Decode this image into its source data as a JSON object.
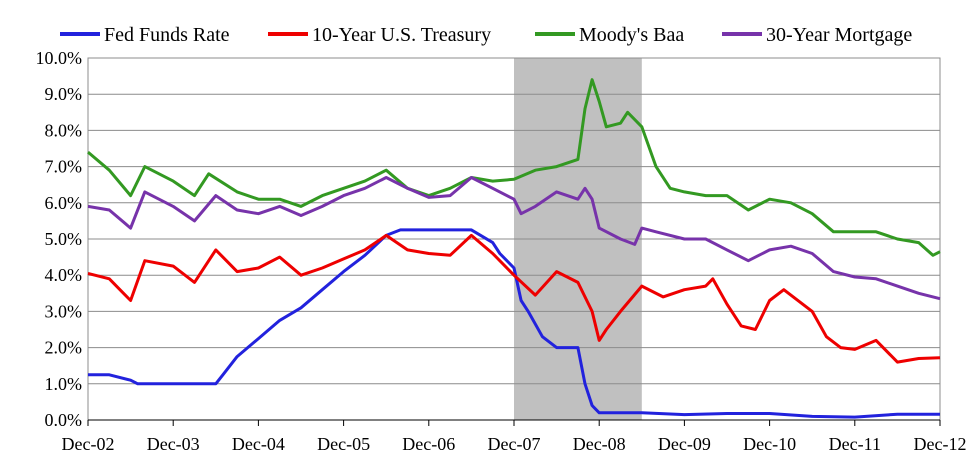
{
  "chart_data": {
    "type": "line",
    "title": "",
    "xlabel": "",
    "ylabel": "",
    "x_ticks": [
      "Dec-02",
      "Dec-03",
      "Dec-04",
      "Dec-05",
      "Dec-06",
      "Dec-07",
      "Dec-08",
      "Dec-09",
      "Dec-10",
      "Dec-11",
      "Dec-12"
    ],
    "y_ticks": [
      "0.0%",
      "1.0%",
      "2.0%",
      "3.0%",
      "4.0%",
      "5.0%",
      "6.0%",
      "7.0%",
      "8.0%",
      "9.0%",
      "10.0%"
    ],
    "xlim": [
      "2002-12",
      "2012-12"
    ],
    "ylim": [
      0,
      10
    ],
    "y_unit": "%",
    "grid": "horizontal",
    "legend_position": "top",
    "recession_shading": {
      "start": "2007-12",
      "end": "2009-06",
      "color": "#c0c0c0"
    },
    "series": [
      {
        "name": "Fed Funds Rate",
        "color": "#2222dd",
        "points": [
          [
            "2002-12",
            1.25
          ],
          [
            "2003-03",
            1.25
          ],
          [
            "2003-06",
            1.1
          ],
          [
            "2003-07",
            1.0
          ],
          [
            "2003-12",
            1.0
          ],
          [
            "2004-06",
            1.0
          ],
          [
            "2004-07",
            1.25
          ],
          [
            "2004-09",
            1.75
          ],
          [
            "2004-12",
            2.25
          ],
          [
            "2005-03",
            2.75
          ],
          [
            "2005-06",
            3.1
          ],
          [
            "2005-09",
            3.6
          ],
          [
            "2005-12",
            4.1
          ],
          [
            "2006-03",
            4.55
          ],
          [
            "2006-06",
            5.1
          ],
          [
            "2006-08",
            5.25
          ],
          [
            "2006-12",
            5.25
          ],
          [
            "2007-06",
            5.25
          ],
          [
            "2007-09",
            4.9
          ],
          [
            "2007-10",
            4.6
          ],
          [
            "2007-12",
            4.2
          ],
          [
            "2008-01",
            3.3
          ],
          [
            "2008-02",
            3.0
          ],
          [
            "2008-04",
            2.3
          ],
          [
            "2008-06",
            2.0
          ],
          [
            "2008-09",
            2.0
          ],
          [
            "2008-10",
            1.0
          ],
          [
            "2008-11",
            0.4
          ],
          [
            "2008-12",
            0.2
          ],
          [
            "2009-06",
            0.2
          ],
          [
            "2009-12",
            0.15
          ],
          [
            "2010-06",
            0.18
          ],
          [
            "2010-12",
            0.18
          ],
          [
            "2011-06",
            0.1
          ],
          [
            "2011-12",
            0.08
          ],
          [
            "2012-06",
            0.16
          ],
          [
            "2012-12",
            0.16
          ]
        ]
      },
      {
        "name": "10-Year U.S. Treasury",
        "color": "#ee0000",
        "points": [
          [
            "2002-12",
            4.05
          ],
          [
            "2003-03",
            3.9
          ],
          [
            "2003-05",
            3.5
          ],
          [
            "2003-06",
            3.3
          ],
          [
            "2003-08",
            4.4
          ],
          [
            "2003-12",
            4.25
          ],
          [
            "2004-03",
            3.8
          ],
          [
            "2004-06",
            4.7
          ],
          [
            "2004-09",
            4.1
          ],
          [
            "2004-12",
            4.2
          ],
          [
            "2005-03",
            4.5
          ],
          [
            "2005-06",
            4.0
          ],
          [
            "2005-09",
            4.2
          ],
          [
            "2005-12",
            4.45
          ],
          [
            "2006-03",
            4.7
          ],
          [
            "2006-06",
            5.1
          ],
          [
            "2006-09",
            4.7
          ],
          [
            "2006-12",
            4.6
          ],
          [
            "2007-03",
            4.55
          ],
          [
            "2007-06",
            5.1
          ],
          [
            "2007-09",
            4.6
          ],
          [
            "2007-12",
            4.0
          ],
          [
            "2008-03",
            3.45
          ],
          [
            "2008-06",
            4.1
          ],
          [
            "2008-09",
            3.8
          ],
          [
            "2008-11",
            3.0
          ],
          [
            "2008-12",
            2.2
          ],
          [
            "2009-01",
            2.5
          ],
          [
            "2009-03",
            3.0
          ],
          [
            "2009-06",
            3.7
          ],
          [
            "2009-09",
            3.4
          ],
          [
            "2009-12",
            3.6
          ],
          [
            "2010-03",
            3.7
          ],
          [
            "2010-04",
            3.9
          ],
          [
            "2010-06",
            3.2
          ],
          [
            "2010-08",
            2.6
          ],
          [
            "2010-10",
            2.5
          ],
          [
            "2010-12",
            3.3
          ],
          [
            "2011-02",
            3.6
          ],
          [
            "2011-06",
            3.0
          ],
          [
            "2011-08",
            2.3
          ],
          [
            "2011-10",
            2.0
          ],
          [
            "2011-12",
            1.95
          ],
          [
            "2012-03",
            2.2
          ],
          [
            "2012-06",
            1.6
          ],
          [
            "2012-09",
            1.7
          ],
          [
            "2012-12",
            1.72
          ]
        ]
      },
      {
        "name": "Moody's Baa",
        "color": "#339922",
        "points": [
          [
            "2002-12",
            7.4
          ],
          [
            "2003-03",
            6.9
          ],
          [
            "2003-06",
            6.2
          ],
          [
            "2003-08",
            7.0
          ],
          [
            "2003-12",
            6.6
          ],
          [
            "2004-03",
            6.2
          ],
          [
            "2004-05",
            6.8
          ],
          [
            "2004-09",
            6.3
          ],
          [
            "2004-12",
            6.1
          ],
          [
            "2005-03",
            6.1
          ],
          [
            "2005-06",
            5.9
          ],
          [
            "2005-09",
            6.2
          ],
          [
            "2005-12",
            6.4
          ],
          [
            "2006-03",
            6.6
          ],
          [
            "2006-06",
            6.9
          ],
          [
            "2006-09",
            6.4
          ],
          [
            "2006-12",
            6.2
          ],
          [
            "2007-03",
            6.4
          ],
          [
            "2007-06",
            6.7
          ],
          [
            "2007-09",
            6.6
          ],
          [
            "2007-12",
            6.65
          ],
          [
            "2008-03",
            6.9
          ],
          [
            "2008-06",
            7.0
          ],
          [
            "2008-09",
            7.2
          ],
          [
            "2008-10",
            8.6
          ],
          [
            "2008-11",
            9.4
          ],
          [
            "2008-12",
            8.8
          ],
          [
            "2009-01",
            8.1
          ],
          [
            "2009-03",
            8.2
          ],
          [
            "2009-04",
            8.5
          ],
          [
            "2009-06",
            8.1
          ],
          [
            "2009-08",
            7.0
          ],
          [
            "2009-10",
            6.4
          ],
          [
            "2009-12",
            6.3
          ],
          [
            "2010-03",
            6.2
          ],
          [
            "2010-06",
            6.2
          ],
          [
            "2010-09",
            5.8
          ],
          [
            "2010-12",
            6.1
          ],
          [
            "2011-03",
            6.0
          ],
          [
            "2011-06",
            5.7
          ],
          [
            "2011-09",
            5.2
          ],
          [
            "2011-12",
            5.2
          ],
          [
            "2012-03",
            5.2
          ],
          [
            "2012-06",
            5.0
          ],
          [
            "2012-09",
            4.9
          ],
          [
            "2012-11",
            4.55
          ],
          [
            "2012-12",
            4.65
          ]
        ]
      },
      {
        "name": "30-Year Mortgage",
        "color": "#7733aa",
        "points": [
          [
            "2002-12",
            5.9
          ],
          [
            "2003-03",
            5.8
          ],
          [
            "2003-06",
            5.3
          ],
          [
            "2003-08",
            6.3
          ],
          [
            "2003-12",
            5.9
          ],
          [
            "2004-03",
            5.5
          ],
          [
            "2004-06",
            6.2
          ],
          [
            "2004-09",
            5.8
          ],
          [
            "2004-12",
            5.7
          ],
          [
            "2005-03",
            5.9
          ],
          [
            "2005-06",
            5.65
          ],
          [
            "2005-09",
            5.9
          ],
          [
            "2005-12",
            6.2
          ],
          [
            "2006-03",
            6.4
          ],
          [
            "2006-06",
            6.7
          ],
          [
            "2006-09",
            6.4
          ],
          [
            "2006-12",
            6.15
          ],
          [
            "2007-03",
            6.2
          ],
          [
            "2007-06",
            6.7
          ],
          [
            "2007-09",
            6.4
          ],
          [
            "2007-12",
            6.1
          ],
          [
            "2008-01",
            5.7
          ],
          [
            "2008-03",
            5.9
          ],
          [
            "2008-06",
            6.3
          ],
          [
            "2008-09",
            6.1
          ],
          [
            "2008-10",
            6.4
          ],
          [
            "2008-11",
            6.1
          ],
          [
            "2008-12",
            5.3
          ],
          [
            "2009-03",
            5.0
          ],
          [
            "2009-05",
            4.85
          ],
          [
            "2009-06",
            5.3
          ],
          [
            "2009-08",
            5.2
          ],
          [
            "2009-12",
            5.0
          ],
          [
            "2010-03",
            5.0
          ],
          [
            "2010-06",
            4.7
          ],
          [
            "2010-09",
            4.4
          ],
          [
            "2010-12",
            4.7
          ],
          [
            "2011-03",
            4.8
          ],
          [
            "2011-06",
            4.6
          ],
          [
            "2011-09",
            4.1
          ],
          [
            "2011-12",
            3.95
          ],
          [
            "2012-03",
            3.9
          ],
          [
            "2012-06",
            3.7
          ],
          [
            "2012-09",
            3.5
          ],
          [
            "2012-12",
            3.35
          ]
        ]
      }
    ]
  }
}
